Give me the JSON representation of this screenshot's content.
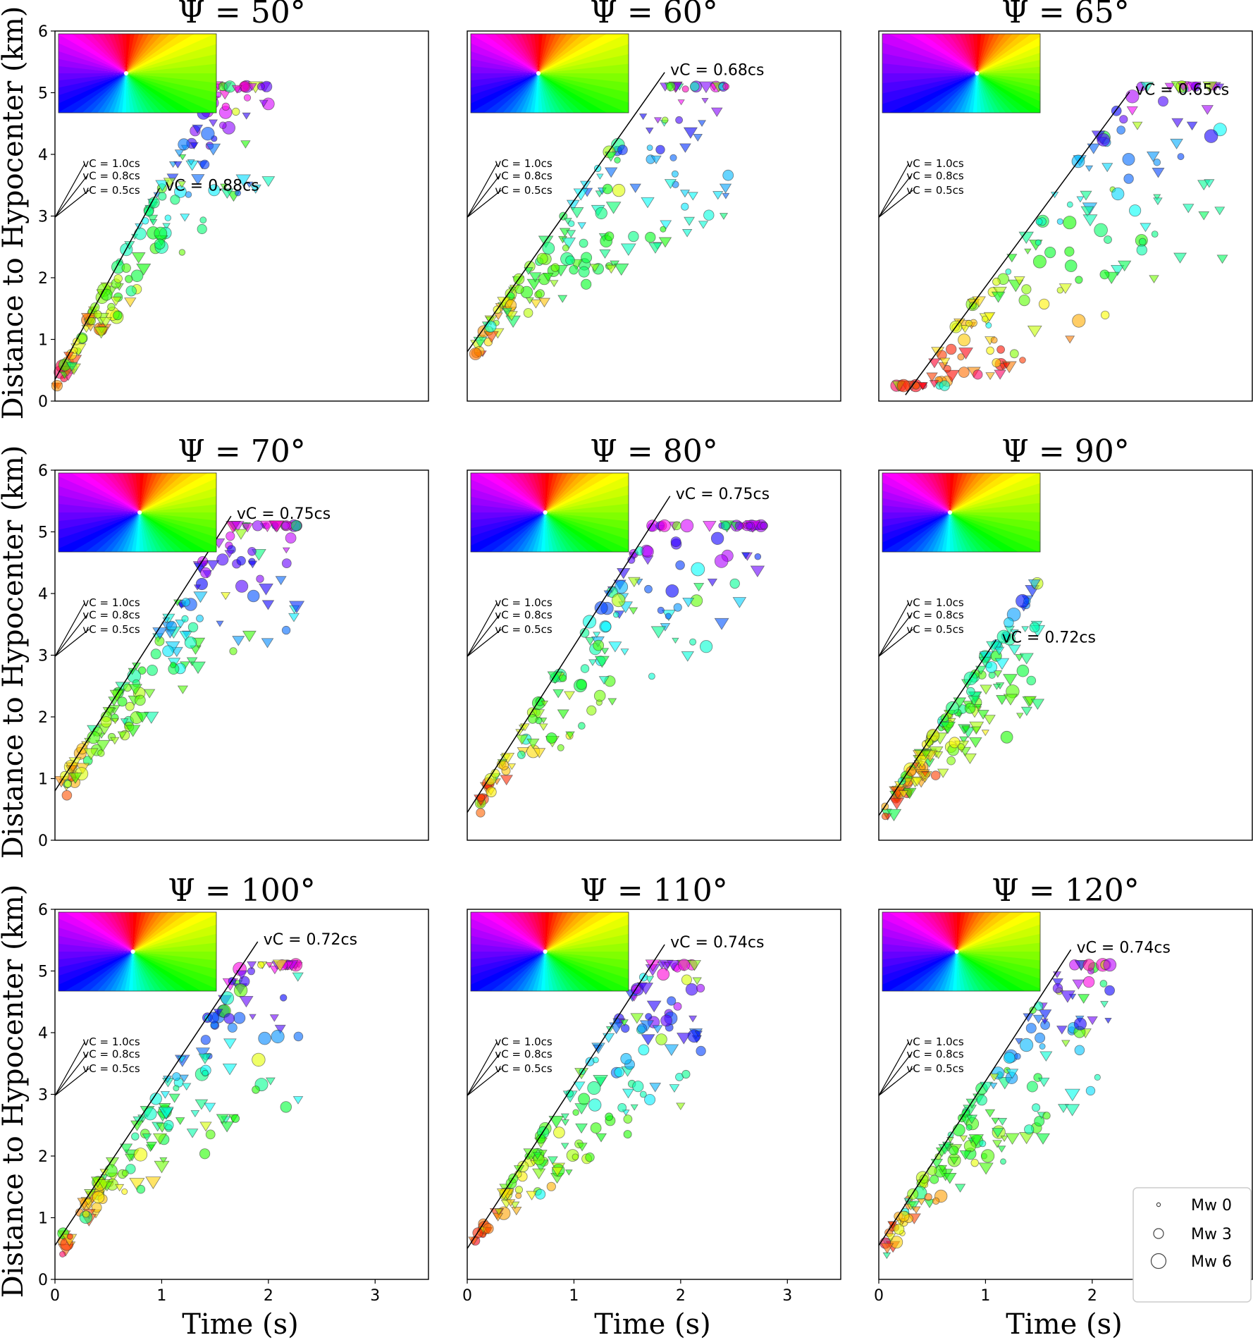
{
  "figure": {
    "ylabel": "Distance to Hypocenter (km)",
    "xlabel": "Time (s)"
  },
  "chart_data": [
    {
      "type": "scatter",
      "title": "Ψ = 50°",
      "vc_label": "vC = 0.88cs",
      "vc_ratio": 0.88,
      "line_x0": 0.0,
      "line_y0": 0.35,
      "line_t1": 0.98,
      "x_range": [
        0.0,
        2.0
      ],
      "center": [
        0.15,
        1.6
      ],
      "ref_labels": [
        "vC = 1.0cs",
        "vC = 0.8cs",
        "vC = 0.5cs"
      ],
      "xlim": [
        0,
        3.5
      ],
      "ylim": [
        0,
        6
      ],
      "xticks": [
        0,
        1,
        2,
        3
      ],
      "yticks": [
        0,
        1,
        2,
        3,
        4,
        5,
        6
      ]
    },
    {
      "type": "scatter",
      "title": "Ψ = 60°",
      "vc_label": "vC = 0.68cs",
      "vc_ratio": 0.68,
      "line_x0": 0.0,
      "line_y0": 0.8,
      "line_t1": 1.85,
      "x_range": [
        0.05,
        2.45
      ],
      "center": [
        0.15,
        1.9
      ],
      "ref_labels": [
        "vC = 1.0cs",
        "vC = 0.8cs",
        "vC = 0.5cs"
      ],
      "xlim": [
        0,
        3.5
      ],
      "ylim": [
        0,
        6
      ],
      "xticks": [
        0,
        1,
        2,
        3
      ],
      "yticks": [
        0,
        1,
        2,
        3,
        4,
        5,
        6
      ]
    },
    {
      "type": "scatter",
      "title": "Ψ = 65°",
      "vc_label": "vC = 0.65cs",
      "vc_ratio": 0.65,
      "line_x0": 0.25,
      "line_y0": 0.1,
      "line_t1": 2.35,
      "x_range": [
        0.1,
        3.25
      ],
      "center": [
        0.35,
        1.9
      ],
      "ref_labels": [
        "vC = 1.0cs",
        "vC = 0.8cs",
        "vC = 0.5cs"
      ],
      "xlim": [
        0,
        3.5
      ],
      "ylim": [
        0,
        6
      ],
      "xticks": [
        0,
        1,
        2,
        3
      ],
      "yticks": [
        0,
        1,
        2,
        3,
        4,
        5,
        6
      ]
    },
    {
      "type": "scatter",
      "title": "Ψ = 70°",
      "vc_label": "vC = 0.75cs",
      "vc_ratio": 0.75,
      "line_x0": 0.0,
      "line_y0": 0.8,
      "line_t1": 1.65,
      "x_range": [
        0.05,
        2.3
      ],
      "center": [
        0.25,
        1.8
      ],
      "ref_labels": [
        "vC = 1.0cs",
        "vC = 0.8cs",
        "vC = 0.5cs"
      ],
      "xlim": [
        0,
        3.5
      ],
      "ylim": [
        0,
        6
      ],
      "xticks": [
        0,
        1,
        2,
        3
      ],
      "yticks": [
        0,
        1,
        2,
        3,
        4,
        5,
        6
      ]
    },
    {
      "type": "scatter",
      "title": "Ψ = 80°",
      "vc_label": "vC = 0.75cs",
      "vc_ratio": 0.75,
      "line_x0": 0.0,
      "line_y0": 0.45,
      "line_t1": 1.9,
      "x_range": [
        0.05,
        2.8
      ],
      "center": [
        0.2,
        1.9
      ],
      "ref_labels": [
        "vC = 1.0cs",
        "vC = 0.8cs",
        "vC = 0.5cs"
      ],
      "xlim": [
        0,
        3.5
      ],
      "ylim": [
        0,
        6
      ],
      "xticks": [
        0,
        1,
        2,
        3
      ],
      "yticks": [
        0,
        1,
        2,
        3,
        4,
        5,
        6
      ]
    },
    {
      "type": "scatter",
      "title": "Ψ = 90°",
      "vc_label": "vC = 0.72cs",
      "vc_ratio": 0.72,
      "line_x0": 0.0,
      "line_y0": 0.4,
      "line_t1": 1.1,
      "x_range": [
        0.05,
        1.5
      ],
      "center": [
        0.15,
        1.4
      ],
      "ref_labels": [
        "vC = 1.0cs",
        "vC = 0.8cs",
        "vC = 0.5cs"
      ],
      "xlim": [
        0,
        3.5
      ],
      "ylim": [
        0,
        6
      ],
      "xticks": [
        0,
        1,
        2,
        3
      ],
      "yticks": [
        0,
        1,
        2,
        3,
        4,
        5,
        6
      ]
    },
    {
      "type": "scatter",
      "title": "Ψ = 100°",
      "vc_label": "vC = 0.72cs",
      "vc_ratio": 0.72,
      "line_x0": 0.0,
      "line_y0": 0.55,
      "line_t1": 1.9,
      "x_range": [
        0.05,
        2.3
      ],
      "center": [
        0.2,
        1.7
      ],
      "ref_labels": [
        "vC = 1.0cs",
        "vC = 0.8cs",
        "vC = 0.5cs"
      ],
      "xlim": [
        0,
        3.5
      ],
      "ylim": [
        0,
        6
      ],
      "xticks": [
        0,
        1,
        2,
        3
      ],
      "yticks": [
        0,
        1,
        2,
        3,
        4,
        5,
        6
      ]
    },
    {
      "type": "scatter",
      "title": "Ψ = 110°",
      "vc_label": "vC = 0.74cs",
      "vc_ratio": 0.74,
      "line_x0": 0.0,
      "line_y0": 0.5,
      "line_t1": 1.85,
      "x_range": [
        0.05,
        2.2
      ],
      "center": [
        0.2,
        1.6
      ],
      "ref_labels": [
        "vC = 1.0cs",
        "vC = 0.8cs",
        "vC = 0.5cs"
      ],
      "xlim": [
        0,
        3.5
      ],
      "ylim": [
        0,
        6
      ],
      "xticks": [
        0,
        1,
        2,
        3
      ],
      "yticks": [
        0,
        1,
        2,
        3,
        4,
        5,
        6
      ]
    },
    {
      "type": "scatter",
      "title": "Ψ = 120°",
      "vc_label": "vC = 0.74cs",
      "vc_ratio": 0.74,
      "line_x0": 0.0,
      "line_y0": 0.55,
      "line_t1": 1.8,
      "x_range": [
        0.05,
        2.2
      ],
      "center": [
        0.2,
        1.6
      ],
      "ref_labels": [
        "vC = 1.0cs",
        "vC = 0.8cs",
        "vC = 0.5cs"
      ],
      "xlim": [
        0,
        3.5
      ],
      "ylim": [
        0,
        6
      ],
      "xticks": [
        0,
        1,
        2,
        3
      ],
      "yticks": [
        0,
        1,
        2,
        3,
        4,
        5,
        6
      ]
    }
  ],
  "legend": [
    {
      "label": "Mw 0",
      "mw": 0
    },
    {
      "label": "Mw 3",
      "mw": 3
    },
    {
      "label": "Mw 6",
      "mw": 6
    }
  ]
}
